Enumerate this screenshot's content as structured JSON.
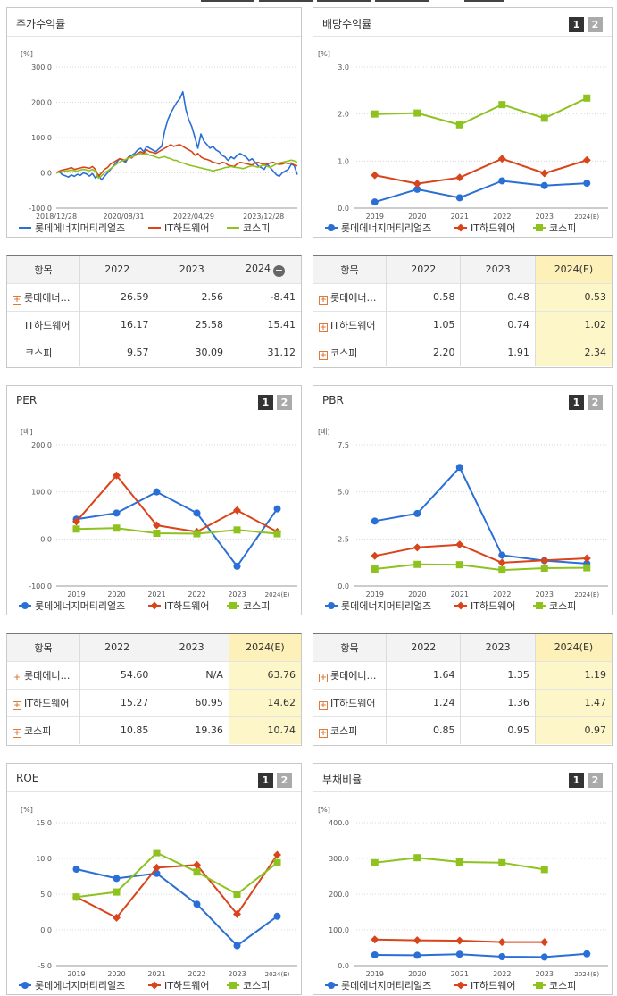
{
  "panels": [
    {
      "id": "stock-return",
      "title": "주가수익률",
      "buttons": [],
      "chart_data": {
        "type": "line",
        "unit": "[%]",
        "ylim": [
          -100,
          300
        ],
        "yticks": [
          "300.0",
          "200.0",
          "100.0",
          "0.0",
          "-100.0"
        ],
        "xticks": [
          "2018/12/28",
          "2020/08/31",
          "2022/04/29",
          "2023/12/28"
        ],
        "series": [
          {
            "name": "롯데에너지머티리얼즈",
            "color": "#2a6fd6",
            "marker": "none",
            "values": [
              0,
              3,
              -5,
              -8,
              -12,
              -6,
              -10,
              -4,
              -7,
              0,
              -3,
              -9,
              -2,
              -15,
              -5,
              -20,
              -10,
              0,
              10,
              20,
              30,
              40,
              35,
              30,
              45,
              50,
              55,
              65,
              70,
              60,
              75,
              70,
              65,
              60,
              68,
              75,
              120,
              150,
              170,
              185,
              200,
              210,
              230,
              180,
              150,
              130,
              100,
              70,
              110,
              90,
              80,
              70,
              75,
              65,
              60,
              50,
              45,
              35,
              45,
              40,
              50,
              55,
              50,
              45,
              35,
              40,
              30,
              20,
              15,
              10,
              25,
              15,
              5,
              -5,
              -10,
              0,
              5,
              10,
              25,
              20,
              -5
            ]
          },
          {
            "name": "IT하드웨어",
            "color": "#d9441b",
            "marker": "none",
            "values": [
              0,
              5,
              8,
              10,
              12,
              15,
              10,
              12,
              14,
              16,
              15,
              13,
              18,
              10,
              -10,
              0,
              10,
              15,
              25,
              30,
              35,
              40,
              38,
              35,
              45,
              42,
              50,
              55,
              60,
              55,
              65,
              60,
              58,
              55,
              60,
              65,
              70,
              75,
              80,
              75,
              78,
              80,
              75,
              70,
              65,
              60,
              50,
              55,
              45,
              40,
              38,
              35,
              30,
              28,
              25,
              30,
              28,
              22,
              20,
              18,
              25,
              30,
              28,
              26,
              24,
              22,
              28,
              30,
              26,
              24,
              25,
              28,
              30,
              26,
              24,
              25,
              28,
              26,
              28,
              22,
              20
            ]
          },
          {
            "name": "코스피",
            "color": "#8dc21f",
            "marker": "none",
            "values": [
              0,
              2,
              3,
              5,
              6,
              8,
              6,
              5,
              8,
              10,
              8,
              6,
              10,
              4,
              -15,
              -8,
              0,
              5,
              12,
              18,
              25,
              30,
              35,
              38,
              42,
              45,
              48,
              52,
              55,
              52,
              55,
              50,
              48,
              45,
              42,
              44,
              46,
              42,
              40,
              36,
              35,
              30,
              28,
              25,
              22,
              20,
              18,
              16,
              14,
              12,
              10,
              8,
              5,
              8,
              10,
              12,
              15,
              16,
              18,
              16,
              15,
              14,
              12,
              15,
              18,
              20,
              18,
              16,
              20,
              22,
              18,
              16,
              20,
              25,
              28,
              30,
              32,
              34,
              36,
              34,
              30
            ]
          }
        ]
      }
    },
    {
      "id": "dividend-yield",
      "title": "배당수익률",
      "buttons": [
        "1",
        "2"
      ],
      "chart_data": {
        "type": "line",
        "unit": "[%]",
        "ylim": [
          0,
          3
        ],
        "yticks": [
          "3.0",
          "2.0",
          "1.0",
          "0.0"
        ],
        "categories": [
          "2019",
          "2020",
          "2021",
          "2022",
          "2023",
          "2024(E)"
        ],
        "series": [
          {
            "name": "롯데에너지머티리얼즈",
            "color": "#2a6fd6",
            "marker": "circle",
            "values": [
              0.13,
              0.4,
              0.22,
              0.58,
              0.48,
              0.53
            ]
          },
          {
            "name": "IT하드웨어",
            "color": "#d9441b",
            "marker": "diamond",
            "values": [
              0.7,
              0.52,
              0.65,
              1.05,
              0.74,
              1.02
            ]
          },
          {
            "name": "코스피",
            "color": "#8dc21f",
            "marker": "square",
            "values": [
              2.0,
              2.02,
              1.77,
              2.2,
              1.91,
              2.34
            ]
          }
        ]
      }
    },
    {
      "id": "per",
      "title": "PER",
      "buttons": [
        "1",
        "2"
      ],
      "chart_data": {
        "type": "line",
        "unit": "[배]",
        "ylim": [
          -100,
          200
        ],
        "yticks": [
          "200.0",
          "100.0",
          "0.0",
          "-100.0"
        ],
        "categories": [
          "2019",
          "2020",
          "2021",
          "2022",
          "2023",
          "2024(E)"
        ],
        "series": [
          {
            "name": "롯데에너지머티리얼즈",
            "color": "#2a6fd6",
            "marker": "circle",
            "values": [
              42,
              55,
              100,
              55,
              -58,
              64
            ]
          },
          {
            "name": "IT하드웨어",
            "color": "#d9441b",
            "marker": "diamond",
            "values": [
              37,
              135,
              29,
              15,
              61,
              15
            ]
          },
          {
            "name": "코스피",
            "color": "#8dc21f",
            "marker": "square",
            "values": [
              21,
              23,
              12,
              11,
              19,
              11
            ]
          }
        ]
      }
    },
    {
      "id": "pbr",
      "title": "PBR",
      "buttons": [
        "1",
        "2"
      ],
      "chart_data": {
        "type": "line",
        "unit": "[배]",
        "ylim": [
          0,
          7.5
        ],
        "yticks": [
          "7.5",
          "5.0",
          "2.5",
          "0.0"
        ],
        "categories": [
          "2019",
          "2020",
          "2021",
          "2022",
          "2023",
          "2024(E)"
        ],
        "series": [
          {
            "name": "롯데에너지머티리얼즈",
            "color": "#2a6fd6",
            "marker": "circle",
            "values": [
              3.45,
              3.85,
              6.3,
              1.64,
              1.35,
              1.19
            ]
          },
          {
            "name": "IT하드웨어",
            "color": "#d9441b",
            "marker": "diamond",
            "values": [
              1.6,
              2.05,
              2.2,
              1.24,
              1.36,
              1.47
            ]
          },
          {
            "name": "코스피",
            "color": "#8dc21f",
            "marker": "square",
            "values": [
              0.9,
              1.15,
              1.13,
              0.85,
              0.95,
              0.97
            ]
          }
        ]
      }
    },
    {
      "id": "roe",
      "title": "ROE",
      "buttons": [
        "1",
        "2"
      ],
      "chart_data": {
        "type": "line",
        "unit": "[%]",
        "ylim": [
          -5,
          15
        ],
        "yticks": [
          "15.0",
          "10.0",
          "5.0",
          "0.0",
          "-5.0"
        ],
        "categories": [
          "2019",
          "2020",
          "2021",
          "2022",
          "2023",
          "2024(E)"
        ],
        "series": [
          {
            "name": "롯데에너지머티리얼즈",
            "color": "#2a6fd6",
            "marker": "circle",
            "values": [
              8.5,
              7.2,
              7.9,
              3.6,
              -2.2,
              1.9
            ]
          },
          {
            "name": "IT하드웨어",
            "color": "#d9441b",
            "marker": "diamond",
            "values": [
              4.6,
              1.7,
              8.7,
              9.1,
              2.2,
              10.5
            ]
          },
          {
            "name": "코스피",
            "color": "#8dc21f",
            "marker": "square",
            "values": [
              4.6,
              5.3,
              10.8,
              8.1,
              5.0,
              9.4
            ]
          }
        ]
      }
    },
    {
      "id": "debt-ratio",
      "title": "부채비율",
      "buttons": [
        "1",
        "2"
      ],
      "chart_data": {
        "type": "line",
        "unit": "[%]",
        "ylim": [
          0,
          400
        ],
        "yticks": [
          "400.0",
          "300.0",
          "200.0",
          "100.0",
          "0.0"
        ],
        "categories": [
          "2019",
          "2020",
          "2021",
          "2022",
          "2023",
          "2024(E)"
        ],
        "series": [
          {
            "name": "롯데에너지머티리얼즈",
            "color": "#2a6fd6",
            "marker": "circle",
            "values": [
              30,
              29,
              32,
              25,
              24,
              33
            ]
          },
          {
            "name": "IT하드웨어",
            "color": "#d9441b",
            "marker": "diamond",
            "values": [
              73,
              71,
              70,
              66,
              66,
              null
            ]
          },
          {
            "name": "코스피",
            "color": "#8dc21f",
            "marker": "square",
            "values": [
              288,
              302,
              290,
              288,
              269,
              null
            ]
          }
        ]
      }
    }
  ],
  "tables": [
    {
      "id": "stock-return-table",
      "headers": [
        "항목",
        "2022",
        "2023",
        "2024"
      ],
      "header_icon": "minus",
      "highlight_last": false,
      "rows": [
        {
          "name": "롯데에너…",
          "plus": true,
          "values": [
            "26.59",
            "2.56",
            "-8.41"
          ]
        },
        {
          "name": "IT하드웨어",
          "plus": false,
          "values": [
            "16.17",
            "25.58",
            "15.41"
          ]
        },
        {
          "name": "코스피",
          "plus": false,
          "values": [
            "9.57",
            "30.09",
            "31.12"
          ]
        }
      ]
    },
    {
      "id": "dividend-table",
      "headers": [
        "항목",
        "2022",
        "2023",
        "2024(E)"
      ],
      "header_icon": "",
      "highlight_last": true,
      "rows": [
        {
          "name": "롯데에너…",
          "plus": true,
          "values": [
            "0.58",
            "0.48",
            "0.53"
          ]
        },
        {
          "name": "IT하드웨어",
          "plus": true,
          "values": [
            "1.05",
            "0.74",
            "1.02"
          ]
        },
        {
          "name": "코스피",
          "plus": true,
          "values": [
            "2.20",
            "1.91",
            "2.34"
          ]
        }
      ]
    },
    {
      "id": "per-table",
      "headers": [
        "항목",
        "2022",
        "2023",
        "2024(E)"
      ],
      "header_icon": "",
      "highlight_last": true,
      "rows": [
        {
          "name": "롯데에너…",
          "plus": true,
          "values": [
            "54.60",
            "N/A",
            "63.76"
          ]
        },
        {
          "name": "IT하드웨어",
          "plus": true,
          "values": [
            "15.27",
            "60.95",
            "14.62"
          ]
        },
        {
          "name": "코스피",
          "plus": true,
          "values": [
            "10.85",
            "19.36",
            "10.74"
          ]
        }
      ]
    },
    {
      "id": "pbr-table",
      "headers": [
        "항목",
        "2022",
        "2023",
        "2024(E)"
      ],
      "header_icon": "",
      "highlight_last": true,
      "rows": [
        {
          "name": "롯데에너…",
          "plus": true,
          "values": [
            "1.64",
            "1.35",
            "1.19"
          ]
        },
        {
          "name": "IT하드웨어",
          "plus": true,
          "values": [
            "1.24",
            "1.36",
            "1.47"
          ]
        },
        {
          "name": "코스피",
          "plus": true,
          "values": [
            "0.85",
            "0.95",
            "0.97"
          ]
        }
      ]
    }
  ]
}
